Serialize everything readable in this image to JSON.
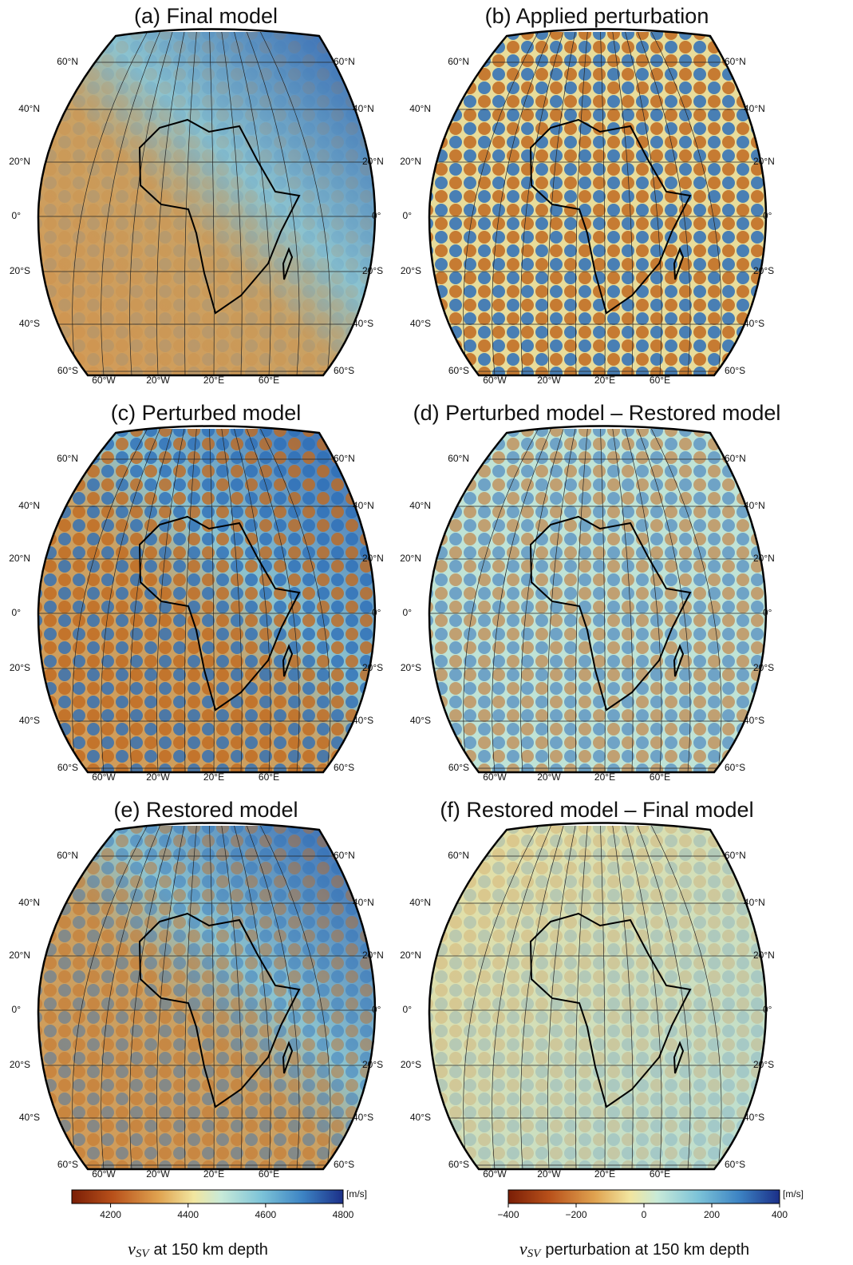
{
  "panels": [
    {
      "title": "(a) Final model"
    },
    {
      "title": "(b) Applied perturbation"
    },
    {
      "title": "(c) Perturbed model"
    },
    {
      "title": "(d) Perturbed model – Restored model"
    },
    {
      "title": "(e) Restored model"
    },
    {
      "title": "(f) Restored model – Final model"
    }
  ],
  "lat_labels": [
    "60°N",
    "40°N",
    "20°N",
    "0°",
    "20°S",
    "40°S",
    "60°S"
  ],
  "lon_labels": [
    "60°W",
    "20°W",
    "20°E",
    "60°E"
  ],
  "colorbars": [
    {
      "unit": "[m/s]",
      "range": [
        4100,
        4800
      ],
      "ticks": [
        4200,
        4400,
        4600,
        4800
      ],
      "caption_symbol": "v",
      "caption_subscript": "SV",
      "caption_text": "at 150 km depth"
    },
    {
      "unit": "[m/s]",
      "range": [
        -400,
        400
      ],
      "ticks": [
        {
          "value": -400,
          "label": "−400"
        },
        {
          "value": -200,
          "label": "−200"
        },
        0,
        200,
        400
      ],
      "caption_symbol": "v",
      "caption_subscript": "SV",
      "caption_text": "perturbation at 150 km depth"
    }
  ]
}
